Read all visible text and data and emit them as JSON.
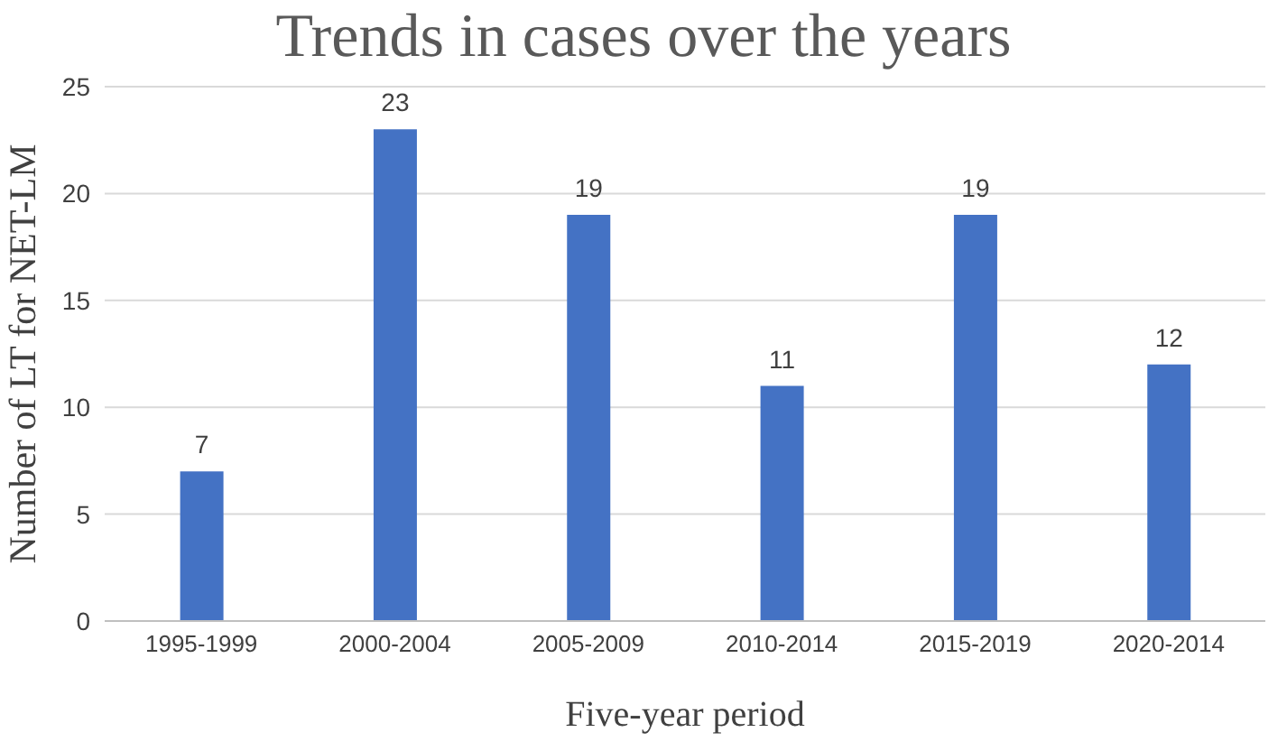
{
  "chart_data": {
    "type": "bar",
    "title": "Trends in cases over the years",
    "xlabel": "Five-year period",
    "ylabel": "Number of LT for NET-LM",
    "categories": [
      "1995-1999",
      "2000-2004",
      "2005-2009",
      "2010-2014",
      "2015-2019",
      "2020-2014"
    ],
    "values": [
      7,
      23,
      19,
      11,
      19,
      12
    ],
    "color": "#4472c4",
    "ylim": [
      0,
      25
    ],
    "yticks": [
      0,
      5,
      10,
      15,
      20,
      25
    ],
    "grid": "y",
    "data_labels": true
  }
}
